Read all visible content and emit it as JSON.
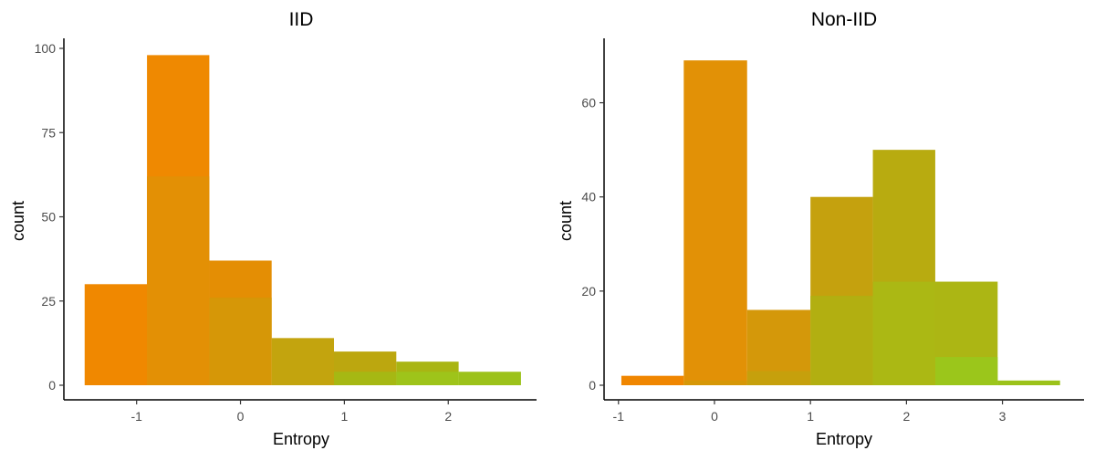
{
  "chart_data": [
    {
      "type": "bar",
      "title": "IID",
      "xlabel": "Entropy",
      "ylabel": "count",
      "xlim": [
        -1.7,
        2.85
      ],
      "ylim": [
        0,
        100
      ],
      "x_ticks": [
        -1,
        0,
        1,
        2
      ],
      "y_ticks": [
        0,
        25,
        50,
        75,
        100
      ],
      "x_tick_labels": [
        "-1",
        "0",
        "1",
        "2"
      ],
      "y_tick_labels": [
        "0",
        "25",
        "50",
        "75",
        "100"
      ],
      "grid": false,
      "legend": "none",
      "bins": [
        {
          "x_start": -1.5,
          "x_end": -0.9,
          "value": 30,
          "inner_value": 0,
          "color": "#F08800",
          "inner_color": "#F08800"
        },
        {
          "x_start": -0.9,
          "x_end": -0.3,
          "value": 98,
          "inner_value": 62,
          "color": "#EF8901",
          "inner_color": "#E39005"
        },
        {
          "x_start": -0.3,
          "x_end": 0.3,
          "value": 37,
          "inner_value": 26,
          "color": "#E48E04",
          "inner_color": "#D69707"
        },
        {
          "x_start": 0.3,
          "x_end": 0.9,
          "value": 14,
          "inner_value": 0,
          "color": "#C3A40E",
          "inner_color": "#C3A40E"
        },
        {
          "x_start": 0.9,
          "x_end": 1.5,
          "value": 10,
          "inner_value": 4,
          "color": "#BCA70F",
          "inner_color": "#A6B813"
        },
        {
          "x_start": 1.5,
          "x_end": 2.1,
          "value": 7,
          "inner_value": 4,
          "color": "#A9B513",
          "inner_color": "#9EC41A"
        },
        {
          "x_start": 2.1,
          "x_end": 2.7,
          "value": 4,
          "inner_value": 0,
          "color": "#9CC21A",
          "inner_color": "#9CC21A"
        }
      ]
    },
    {
      "type": "bar",
      "title": "Non-IID",
      "xlabel": "Entropy",
      "ylabel": "count",
      "xlim": [
        -1.15,
        3.85
      ],
      "ylim": [
        0,
        70
      ],
      "x_ticks": [
        -1,
        0,
        1,
        2,
        3
      ],
      "y_ticks": [
        0,
        20,
        40,
        60
      ],
      "x_tick_labels": [
        "-1",
        "0",
        "1",
        "2",
        "3"
      ],
      "y_tick_labels": [
        "0",
        "20",
        "40",
        "60"
      ],
      "grid": false,
      "legend": "none",
      "bins": [
        {
          "x_start": -0.97,
          "x_end": -0.32,
          "value": 2,
          "inner_value": 0,
          "color": "#F08600",
          "inner_color": "#F08600"
        },
        {
          "x_start": -0.32,
          "x_end": 0.34,
          "value": 69,
          "inner_value": 1,
          "color": "#E29106",
          "inner_color": "#D69707"
        },
        {
          "x_start": 0.34,
          "x_end": 1.0,
          "value": 16,
          "inner_value": 3,
          "color": "#D4980A",
          "inner_color": "#C6A00C"
        },
        {
          "x_start": 1.0,
          "x_end": 1.65,
          "value": 40,
          "inner_value": 19,
          "color": "#C5A10E",
          "inner_color": "#B2AF11"
        },
        {
          "x_start": 1.65,
          "x_end": 2.3,
          "value": 50,
          "inner_value": 22,
          "color": "#B8AB10",
          "inner_color": "#ABB814"
        },
        {
          "x_start": 2.3,
          "x_end": 2.95,
          "value": 22,
          "inner_value": 6,
          "color": "#ACB614",
          "inner_color": "#9BC61B"
        },
        {
          "x_start": 2.95,
          "x_end": 3.6,
          "value": 1,
          "inner_value": 0,
          "color": "#9BC21A",
          "inner_color": "#9BC21A"
        }
      ]
    }
  ]
}
